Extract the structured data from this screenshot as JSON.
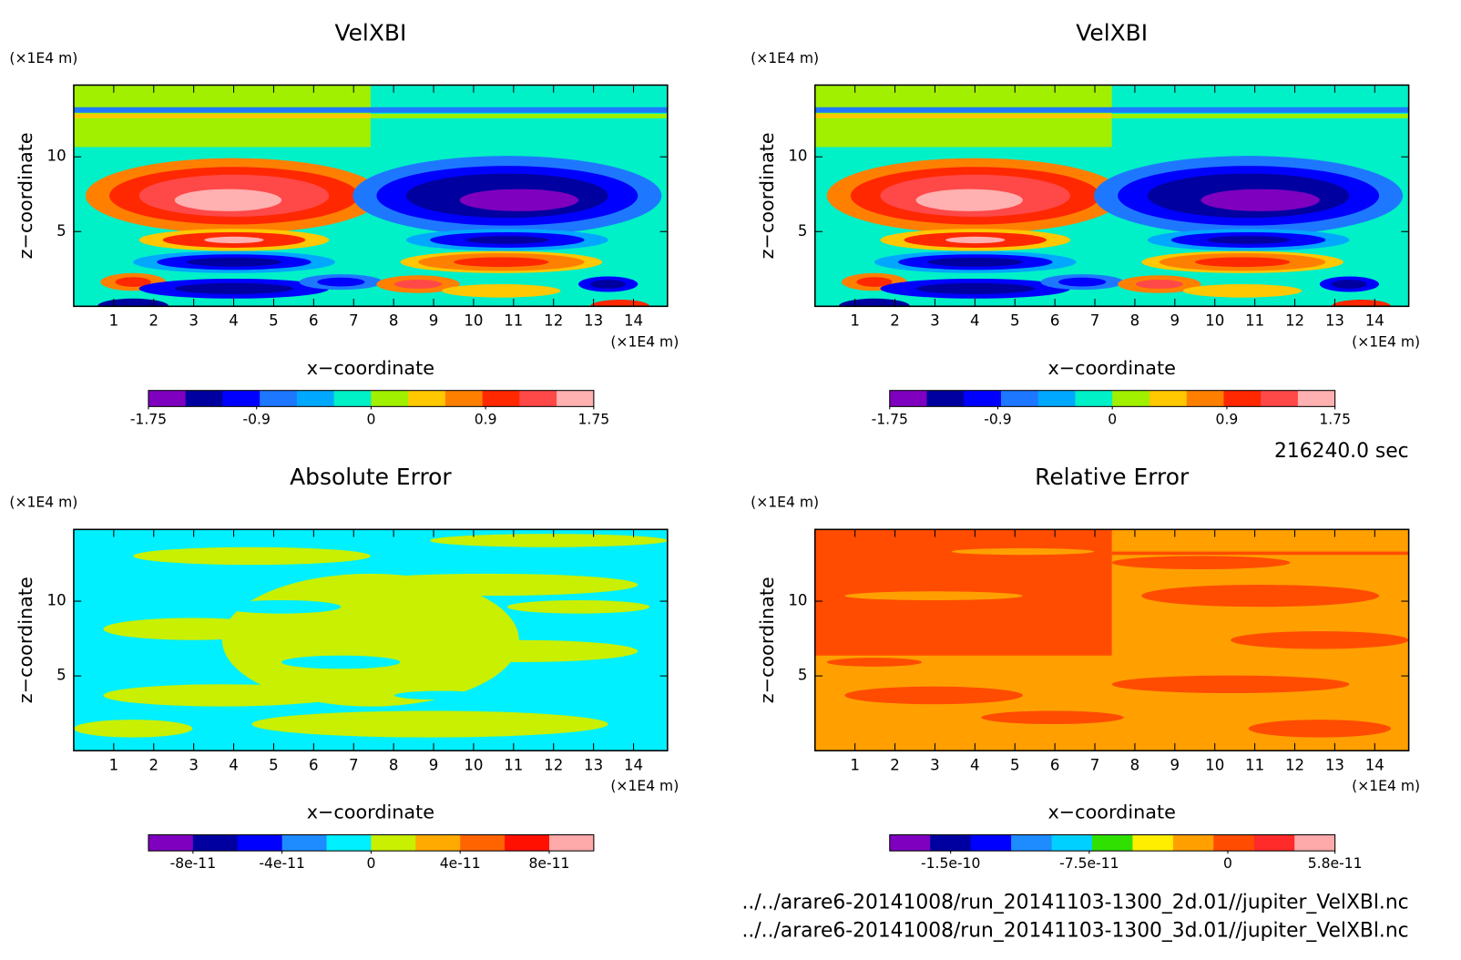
{
  "chart_data": [
    {
      "type": "contour",
      "title": "VelXBI",
      "xlabel": "x−coordinate",
      "ylabel": "z−coordinate",
      "x_unit": "(×1E4 m)",
      "y_unit": "(×1E4 m)",
      "xlim": [
        0,
        14.85
      ],
      "ylim": [
        0,
        14.8
      ],
      "xticks": [
        1,
        2,
        3,
        4,
        5,
        6,
        7,
        8,
        9,
        10,
        11,
        12,
        13,
        14
      ],
      "yticks": [
        5,
        10
      ],
      "colorbar": {
        "clim": [
          -1.75,
          1.75
        ],
        "ticks": [
          -1.75,
          -0.9,
          0,
          0.9,
          1.75
        ],
        "colors": [
          "#7f00bf",
          "#0000a0",
          "#0000ff",
          "#1e78ff",
          "#00a8ff",
          "#00f0c8",
          "#a0f000",
          "#ffc800",
          "#ff8000",
          "#ff2800",
          "#ff4848",
          "#ffb0b0"
        ]
      }
    },
    {
      "type": "contour",
      "title": "VelXBI",
      "xlabel": "x−coordinate",
      "ylabel": "z−coordinate",
      "x_unit": "(×1E4 m)",
      "y_unit": "(×1E4 m)",
      "xlim": [
        0,
        14.85
      ],
      "ylim": [
        0,
        14.8
      ],
      "xticks": [
        1,
        2,
        3,
        4,
        5,
        6,
        7,
        8,
        9,
        10,
        11,
        12,
        13,
        14
      ],
      "yticks": [
        5,
        10
      ],
      "colorbar": {
        "clim": [
          -1.75,
          1.75
        ],
        "ticks": [
          -1.75,
          -0.9,
          0,
          0.9,
          1.75
        ],
        "colors": [
          "#7f00bf",
          "#0000a0",
          "#0000ff",
          "#1e78ff",
          "#00a8ff",
          "#00f0c8",
          "#a0f000",
          "#ffc800",
          "#ff8000",
          "#ff2800",
          "#ff4848",
          "#ffb0b0"
        ]
      }
    },
    {
      "type": "contour",
      "title": "Absolute Error",
      "xlabel": "x−coordinate",
      "ylabel": "z−coordinate",
      "x_unit": "(×1E4 m)",
      "y_unit": "(×1E4 m)",
      "xlim": [
        0,
        14.85
      ],
      "ylim": [
        0,
        14.8
      ],
      "xticks": [
        1,
        2,
        3,
        4,
        5,
        6,
        7,
        8,
        9,
        10,
        11,
        12,
        13,
        14
      ],
      "yticks": [
        5,
        10
      ],
      "colorbar": {
        "clim": [
          -1e-10,
          1e-10
        ],
        "ticks": [
          -8e-11,
          -4e-11,
          0,
          4e-11,
          8e-11
        ],
        "colors": [
          "#7f00bf",
          "#0000a0",
          "#0000ff",
          "#1e8cff",
          "#00f0ff",
          "#c8f000",
          "#ffaa00",
          "#ff6400",
          "#ff1000",
          "#ffaaaa"
        ]
      }
    },
    {
      "type": "contour",
      "title": "Relative Error",
      "xlabel": "x−coordinate",
      "ylabel": "z−coordinate",
      "x_unit": "(×1E4 m)",
      "y_unit": "(×1E4 m)",
      "xlim": [
        0,
        14.85
      ],
      "ylim": [
        0,
        14.8
      ],
      "xticks": [
        1,
        2,
        3,
        4,
        5,
        6,
        7,
        8,
        9,
        10,
        11,
        12,
        13,
        14
      ],
      "yticks": [
        5,
        10
      ],
      "colorbar": {
        "clim": [
          -1.83e-10,
          5.8e-11
        ],
        "ticks": [
          -1.5e-10,
          -7.5e-11,
          0,
          5.8e-11
        ],
        "colors": [
          "#7f00bf",
          "#0000a0",
          "#0000ff",
          "#1e8cff",
          "#00d0ff",
          "#30e000",
          "#ffee00",
          "#ffa000",
          "#ff4c00",
          "#ff2a2a",
          "#ffaaaa"
        ]
      }
    }
  ],
  "annotations": {
    "time": "216240.0 sec",
    "files": [
      "../../arare6-20141008/run_20141103-1300_2d.01//jupiter_VelXBl.nc",
      "../../arare6-20141008/run_20141103-1300_3d.01//jupiter_VelXBl.nc"
    ]
  }
}
